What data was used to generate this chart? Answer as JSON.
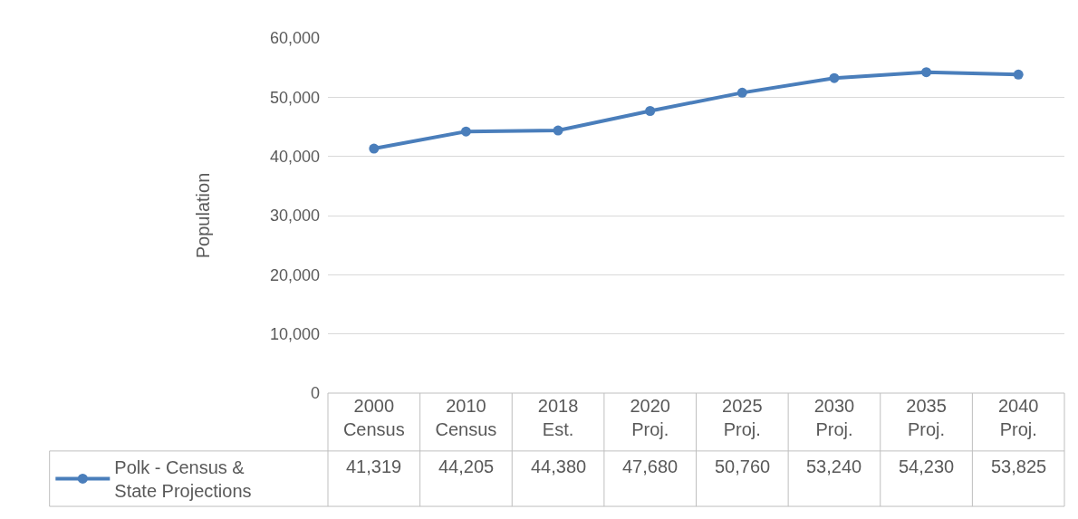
{
  "chart_data": {
    "type": "line",
    "ylabel": "Population",
    "categories": [
      "2000 Census",
      "2010 Census",
      "2018 Est.",
      "2020 Proj.",
      "2025 Proj.",
      "2030 Proj.",
      "2035 Proj.",
      "2040 Proj."
    ],
    "series": [
      {
        "name": "Polk - Census & State Projections",
        "color": "#4a7ebb",
        "values": [
          41319,
          44205,
          44380,
          47680,
          50760,
          53240,
          54230,
          53825
        ],
        "value_labels": [
          "41,319",
          "44,205",
          "44,380",
          "47,680",
          "50,760",
          "53,240",
          "54,230",
          "53,825"
        ]
      }
    ],
    "ylim": [
      0,
      60000
    ],
    "yticks": [
      {
        "value": 0,
        "label": "0"
      },
      {
        "value": 10000,
        "label": "10,000"
      },
      {
        "value": 20000,
        "label": "20,000"
      },
      {
        "value": 30000,
        "label": "30,000"
      },
      {
        "value": 40000,
        "label": "40,000"
      },
      {
        "value": 50000,
        "label": "50,000"
      },
      {
        "value": 60000,
        "label": "60,000"
      }
    ],
    "grid": "y",
    "legend": "bottom",
    "marker": "circle",
    "line_style": "solid"
  }
}
